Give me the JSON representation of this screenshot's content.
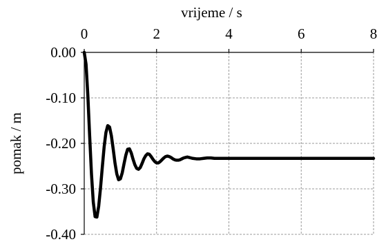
{
  "chart_data": {
    "type": "line",
    "title": "",
    "xlabel": "vrijeme / s",
    "ylabel": "pomak / m",
    "xlim": [
      0,
      8
    ],
    "ylim": [
      -0.4,
      0.0
    ],
    "x_ticks": [
      0,
      2,
      4,
      6,
      8
    ],
    "x_tick_labels": [
      "0",
      "2",
      "4",
      "6",
      "8"
    ],
    "y_ticks": [
      0.0,
      -0.1,
      -0.2,
      -0.3,
      -0.4
    ],
    "y_tick_labels": [
      "0.00",
      "-0.10",
      "-0.20",
      "-0.30",
      "-0.40"
    ],
    "x_axis_position": "top",
    "grid": true,
    "legend": "none",
    "line_color": "#000000",
    "series": [
      {
        "x": [
          0,
          0.05,
          0.1,
          0.15,
          0.2,
          0.25,
          0.3,
          0.35,
          0.4,
          0.45,
          0.5,
          0.55,
          0.6,
          0.65,
          0.7,
          0.75,
          0.8,
          0.85,
          0.9,
          0.95,
          1.0,
          1.05,
          1.1,
          1.15,
          1.2,
          1.25,
          1.3,
          1.35,
          1.4,
          1.45,
          1.5,
          1.55,
          1.6,
          1.65,
          1.7,
          1.75,
          1.8,
          1.85,
          1.9,
          1.95,
          2.0,
          2.05,
          2.1,
          2.15,
          2.2,
          2.25,
          2.3,
          2.35,
          2.4,
          2.45,
          2.5,
          2.55,
          2.6,
          2.65,
          2.7,
          2.75,
          2.8,
          2.85,
          2.9,
          2.95,
          3.0,
          3.1,
          3.2,
          3.3,
          3.4,
          3.5,
          3.6,
          3.7,
          3.8,
          3.9,
          4.0,
          4.2,
          4.4,
          4.6,
          4.8,
          5.0,
          5.5,
          6.0,
          6.5,
          7.0,
          7.5,
          8.0
        ],
        "y": [
          0.0,
          -0.026,
          -0.095,
          -0.184,
          -0.267,
          -0.329,
          -0.361,
          -0.362,
          -0.338,
          -0.298,
          -0.252,
          -0.208,
          -0.176,
          -0.161,
          -0.164,
          -0.183,
          -0.212,
          -0.243,
          -0.267,
          -0.28,
          -0.278,
          -0.265,
          -0.245,
          -0.226,
          -0.213,
          -0.212,
          -0.221,
          -0.235,
          -0.247,
          -0.255,
          -0.257,
          -0.253,
          -0.244,
          -0.234,
          -0.227,
          -0.223,
          -0.224,
          -0.229,
          -0.235,
          -0.24,
          -0.243,
          -0.243,
          -0.24,
          -0.236,
          -0.232,
          -0.229,
          -0.228,
          -0.229,
          -0.231,
          -0.234,
          -0.236,
          -0.237,
          -0.237,
          -0.236,
          -0.234,
          -0.232,
          -0.231,
          -0.23,
          -0.231,
          -0.232,
          -0.233,
          -0.234,
          -0.234,
          -0.233,
          -0.232,
          -0.232,
          -0.233,
          -0.233,
          -0.233,
          -0.233,
          -0.233,
          -0.233,
          -0.233,
          -0.233,
          -0.233,
          -0.233,
          -0.233,
          -0.233,
          -0.233,
          -0.233,
          -0.233,
          -0.233
        ]
      }
    ]
  }
}
